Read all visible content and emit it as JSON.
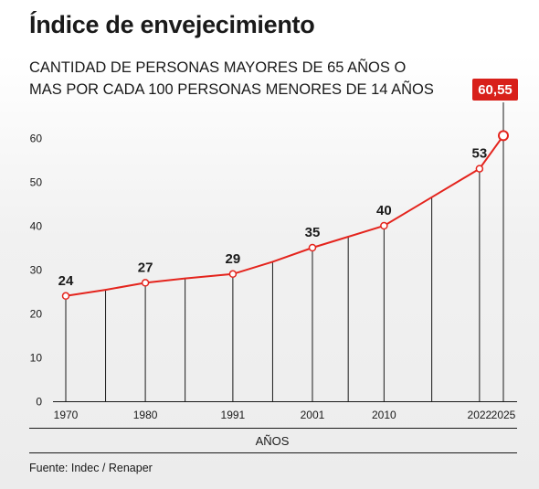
{
  "title": "Índice de envejecimiento",
  "subtitle": "CANTIDAD DE PERSONAS MAYORES DE 65 AÑOS O MAS POR CADA 100 PERSONAS MENORES DE 14 AÑOS",
  "source": "Fuente: Indec / Renaper",
  "colors": {
    "line": "#e4241d",
    "highlight_bg": "#d8201a",
    "axis": "#1a1a1a"
  },
  "chart_data": {
    "type": "line",
    "title": "Índice de envejecimiento",
    "subtitle": "CANTIDAD DE PERSONAS MAYORES DE 65 AÑOS O MAS POR CADA 100 PERSONAS MENORES DE 14 AÑOS",
    "xlabel": "AÑOS",
    "ylabel": "",
    "ylim": [
      0,
      60
    ],
    "yticks": [
      0,
      10,
      20,
      30,
      40,
      50,
      60
    ],
    "xlim": [
      1970,
      2025
    ],
    "xticks": [
      1970,
      1980,
      1991,
      2001,
      2010,
      2022,
      2025
    ],
    "grid": false,
    "series": [
      {
        "x": [
          1970,
          1975,
          1980,
          1985,
          1991,
          1996,
          2001,
          2005.5,
          2010,
          2016,
          2022,
          2025
        ],
        "y": [
          24,
          25.4,
          27,
          28,
          29,
          31.8,
          35,
          37.5,
          40,
          46.5,
          53,
          60.55
        ]
      }
    ],
    "data_labels": [
      {
        "x": 1970,
        "y": 24,
        "text": "24",
        "marker": true
      },
      {
        "x": 1980,
        "y": 27,
        "text": "27",
        "marker": true
      },
      {
        "x": 1991,
        "y": 29,
        "text": "29",
        "marker": true
      },
      {
        "x": 2001,
        "y": 35,
        "text": "35",
        "marker": true
      },
      {
        "x": 2010,
        "y": 40,
        "text": "40",
        "marker": true
      },
      {
        "x": 2022,
        "y": 53,
        "text": "53",
        "marker": true
      },
      {
        "x": 2025,
        "y": 60.55,
        "text": "60,55",
        "marker": true,
        "highlight": true
      }
    ]
  }
}
